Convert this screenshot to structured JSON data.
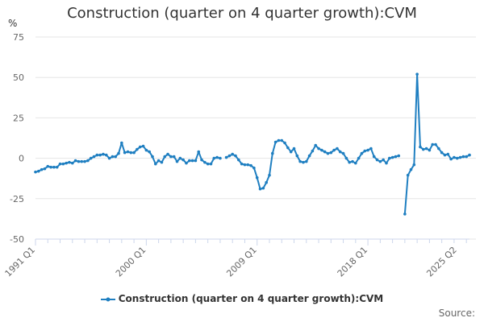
{
  "chart_data": {
    "type": "line",
    "title": "Construction (quarter on 4 quarter growth):CVM",
    "xlabel": "",
    "ylabel": "%",
    "ylim": [
      -50,
      75
    ],
    "yticks": [
      75,
      50,
      25,
      0,
      -25,
      -50
    ],
    "xtick_labels": [
      "1991 Q1",
      "2000 Q1",
      "2009 Q1",
      "2018 Q1",
      "2025 Q2"
    ],
    "xtick_indices": [
      0,
      36,
      72,
      108,
      137
    ],
    "legend_position": "bottom",
    "source": "Source:",
    "series": [
      {
        "name": "Construction (quarter on 4 quarter growth):CVM",
        "color": "#1f7fc1",
        "start": "1991 Q1",
        "values": [
          -8.5,
          -8,
          -7,
          -6.5,
          -5,
          -5.5,
          -5.5,
          -5.5,
          -3.5,
          -3.5,
          -3,
          -2.5,
          -3,
          -1.5,
          -2,
          -2,
          -2,
          -1.5,
          0,
          1,
          2,
          2,
          2.5,
          2,
          0,
          1,
          1,
          3,
          9.5,
          3.5,
          4,
          3.5,
          3.5,
          5.5,
          7,
          7.5,
          5,
          4,
          1,
          -3.5,
          -1.5,
          -2.5,
          1,
          2.5,
          1,
          1,
          -2,
          0,
          -1,
          -3,
          -1.5,
          -1.5,
          -1.5,
          4,
          -1,
          -2.5,
          -3.5,
          -3.5,
          0,
          0.5,
          0,
          null,
          0.5,
          1.5,
          2.5,
          1.5,
          -1,
          -3.5,
          -4,
          -4,
          -4.5,
          -6,
          -12,
          -19,
          -18.5,
          -15,
          -10.5,
          3,
          10,
          11,
          11,
          9.5,
          6.5,
          4,
          6,
          1.5,
          -2,
          -2.5,
          -2,
          1.5,
          4.5,
          8,
          6,
          5,
          4,
          3,
          3.5,
          5,
          6,
          4,
          3,
          0,
          -2.5,
          -2,
          -3,
          0,
          3,
          4.5,
          5,
          6,
          1,
          -1,
          -2,
          -1,
          -3,
          0,
          0.5,
          1,
          1.5,
          null,
          -34.5,
          -10.5,
          -7,
          -4,
          52,
          7,
          5.5,
          6,
          5,
          8.5,
          8.5,
          6,
          3.5,
          2,
          2.5,
          -0.5,
          0.5,
          0,
          0.5,
          1,
          1,
          2
        ]
      }
    ]
  }
}
